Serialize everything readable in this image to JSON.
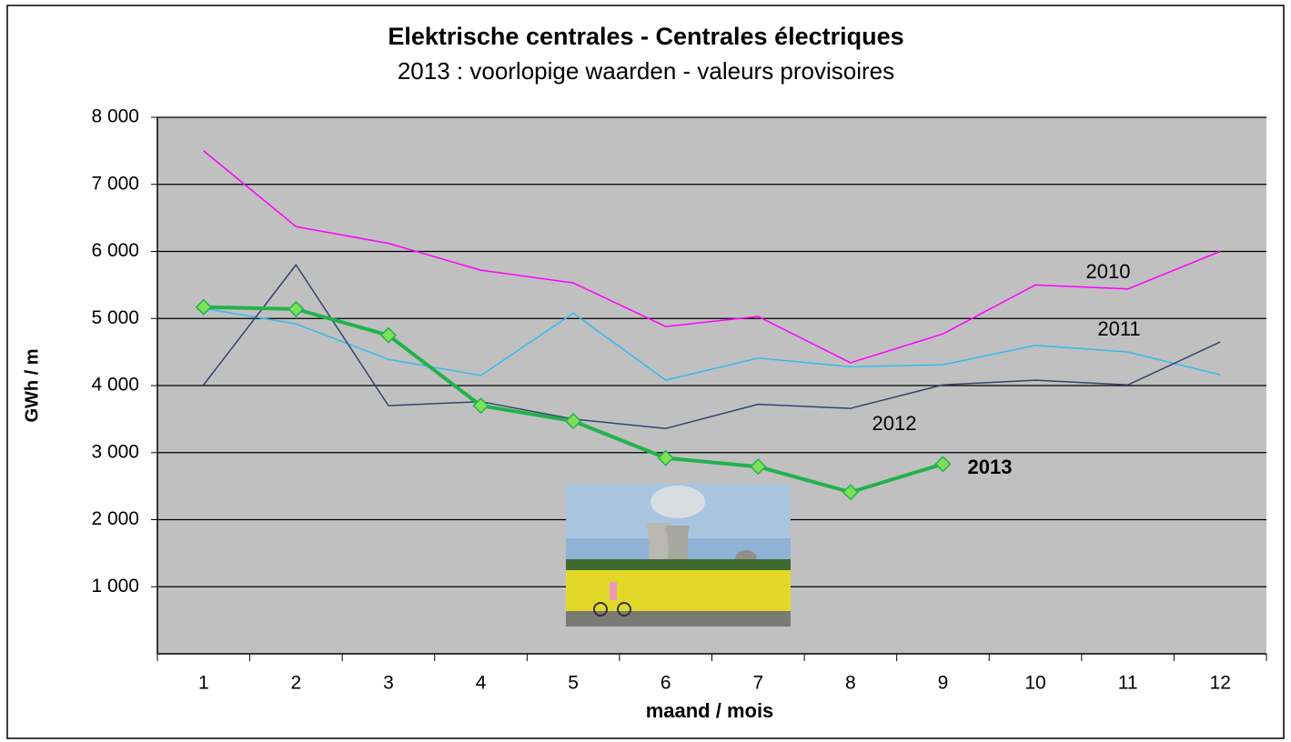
{
  "chart_data": {
    "type": "line",
    "title": "Elektrische centrales -  Centrales électriques",
    "subtitle": "2013 : voorlopige waarden - valeurs provisoires",
    "y_label": "GWh / m",
    "x_label": "maand  /  mois",
    "categories": [
      "1",
      "2",
      "3",
      "4",
      "5",
      "6",
      "7",
      "8",
      "9",
      "10",
      "11",
      "12"
    ],
    "ylim": [
      0,
      8000
    ],
    "yticks": [
      {
        "value": 1000,
        "label": "1 000"
      },
      {
        "value": 2000,
        "label": "2 000"
      },
      {
        "value": 3000,
        "label": "3 000"
      },
      {
        "value": 4000,
        "label": "4 000"
      },
      {
        "value": 5000,
        "label": "5 000"
      },
      {
        "value": 6000,
        "label": "6 000"
      },
      {
        "value": 7000,
        "label": "7 000"
      },
      {
        "value": 8000,
        "label": "8 000"
      }
    ],
    "grid": true,
    "series": [
      {
        "name": "2010",
        "color": "#ff00ff",
        "values": [
          7500,
          6370,
          6120,
          5720,
          5530,
          4880,
          5030,
          4340,
          4770,
          5500,
          5440,
          6000
        ]
      },
      {
        "name": "2011",
        "color": "#33bbee",
        "values": [
          5150,
          4920,
          4390,
          4150,
          5080,
          4080,
          4410,
          4280,
          4310,
          4600,
          4500,
          4160
        ]
      },
      {
        "name": "2012",
        "color": "#33446e",
        "values": [
          4010,
          5800,
          3700,
          3760,
          3500,
          3360,
          3720,
          3660,
          4010,
          4080,
          4010,
          4650
        ]
      },
      {
        "name": "2013",
        "color": "#22b24c",
        "values": [
          5170,
          5140,
          4750,
          3700,
          3470,
          2920,
          2790,
          2410,
          2830,
          null,
          null,
          null
        ]
      }
    ]
  }
}
